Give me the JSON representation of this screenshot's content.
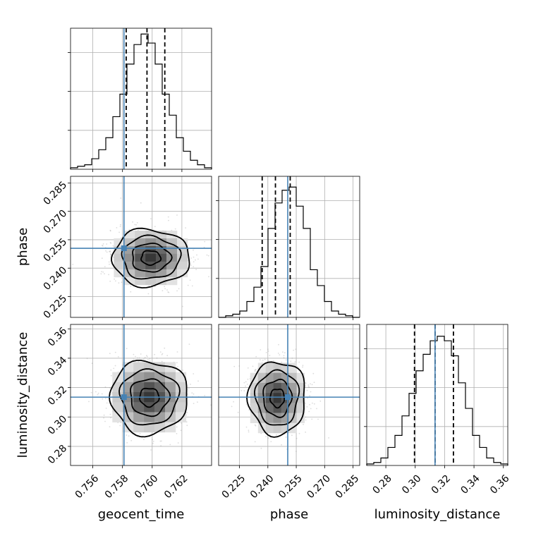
{
  "chart_data": {
    "type": "corner",
    "parameters": [
      {
        "key": "geocent_time",
        "label": "geocent_time",
        "range": [
          0.7545,
          0.764
        ],
        "ticks": [
          "0.756",
          "0.758",
          "0.760",
          "0.762"
        ],
        "tick_values": [
          0.756,
          0.758,
          0.76,
          0.762
        ],
        "truth": 0.7581,
        "quantiles": [
          0.75825,
          0.75965,
          0.76085
        ],
        "hist_counts": [
          1,
          2,
          3,
          7,
          13,
          21,
          35,
          50,
          70,
          83,
          90,
          84,
          70,
          50,
          36,
          21,
          12,
          6,
          3,
          1
        ],
        "hist_max": 92
      },
      {
        "key": "phase",
        "label": "phase",
        "range": [
          0.214,
          0.2885
        ],
        "ticks": [
          "0.225",
          "0.240",
          "0.255",
          "0.270",
          "0.285"
        ],
        "tick_values": [
          0.225,
          0.24,
          0.255,
          0.27,
          0.285
        ],
        "truth": 0.2505,
        "quantiles": [
          0.237,
          0.244,
          0.2518
        ],
        "hist_counts": [
          0,
          1,
          2,
          4,
          10,
          19,
          32,
          56,
          72,
          80,
          82,
          70,
          56,
          30,
          20,
          10,
          4,
          2,
          1,
          0
        ],
        "hist_max": 87
      },
      {
        "key": "luminosity_distance",
        "label": "luminosity_distance",
        "range": [
          0.267,
          0.363
        ],
        "ticks": [
          "0.28",
          "0.30",
          "0.32",
          "0.34",
          "0.36"
        ],
        "tick_values": [
          0.28,
          0.3,
          0.32,
          0.34,
          0.36
        ],
        "truth": 0.3135,
        "quantiles": [
          0.2995,
          0.3135,
          0.326
        ],
        "hist_counts": [
          1,
          2,
          5,
          12,
          20,
          33,
          48,
          63,
          74,
          83,
          86,
          83,
          73,
          55,
          38,
          20,
          12,
          5,
          2,
          1
        ],
        "hist_max": 92
      }
    ],
    "pairs": [
      {
        "x": "geocent_time",
        "y": "phase",
        "center": [
          0.7599,
          0.2455
        ],
        "spread": [
          0.0013,
          0.0075
        ]
      },
      {
        "x": "geocent_time",
        "y": "luminosity_distance",
        "center": [
          0.7598,
          0.3135
        ],
        "spread": [
          0.0013,
          0.0125
        ]
      },
      {
        "x": "phase",
        "y": "luminosity_distance",
        "center": [
          0.245,
          0.313
        ],
        "spread": [
          0.0075,
          0.0125
        ]
      }
    ],
    "grid": true,
    "truth_color": "#4682b4",
    "contour_color": "#000000"
  }
}
